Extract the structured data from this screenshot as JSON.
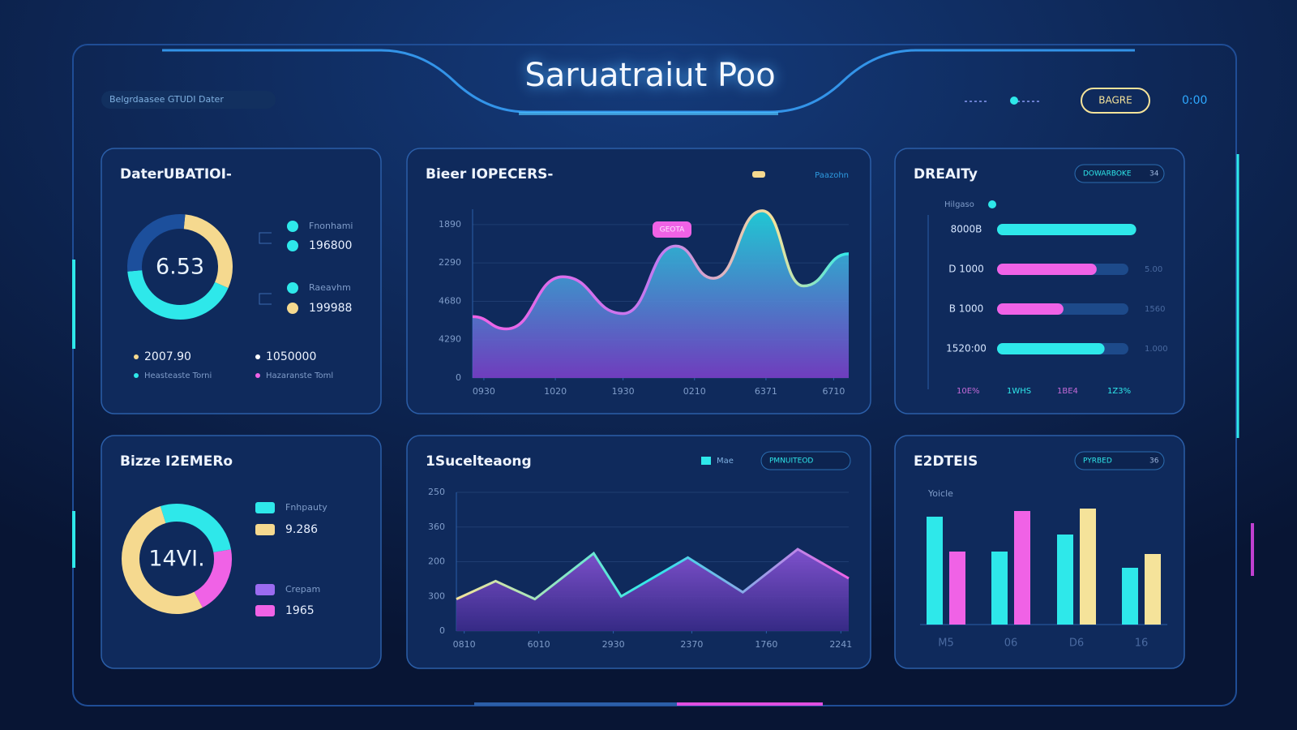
{
  "header": {
    "title": "Saruatraiut Poo",
    "subtitle": "Belgrdaasee GTUDI Dater",
    "button": "BAGRE",
    "time": "0:00"
  },
  "chart_data": [
    {
      "type": "donut",
      "title": "DaterUBATIOI-",
      "center": "6.53",
      "values": [
        30,
        42,
        28
      ],
      "colors": [
        "#f5d98f",
        "#2ee8ea",
        "#1c4f9c"
      ],
      "legend": [
        {
          "label": "Fnonhami",
          "color": "#2ee8ea"
        },
        {
          "label": "196800",
          "color": "#2ee8ea"
        },
        {
          "label": "Raeavhm",
          "color": "#2ee8ea"
        },
        {
          "label": "199988",
          "color": "#f5d98f"
        }
      ],
      "footer": [
        {
          "text": "2007.90",
          "note": "Heasteaste Torni",
          "color": "#2ee8ea"
        },
        {
          "text": "1050000",
          "note": "Hazaranste Toml",
          "color": "#f062e6"
        }
      ]
    },
    {
      "type": "area",
      "title": "Bieer IOPECERS-",
      "legend": "Paazohn",
      "annotation": "GEOTA",
      "x": [
        0,
        9,
        24,
        40,
        54,
        64,
        77,
        88,
        100
      ],
      "values": [
        40,
        32,
        66,
        42,
        86,
        65,
        109,
        60,
        81
      ],
      "xlim": [
        0,
        100
      ],
      "xticks": [
        {
          "value": 3,
          "label": "0930"
        },
        {
          "value": 22,
          "label": "1020"
        },
        {
          "value": 40,
          "label": "1930"
        },
        {
          "value": 59,
          "label": "0210"
        },
        {
          "value": 78,
          "label": "6371"
        },
        {
          "value": 96,
          "label": "6710"
        }
      ],
      "ylim": [
        0,
        110
      ],
      "yticks": [
        0,
        {
          "value": 25,
          "label": "4290"
        },
        {
          "value": 50,
          "label": "4680"
        },
        {
          "value": 75,
          "label": "2290"
        },
        {
          "value": 100,
          "label": "1890"
        }
      ]
    },
    {
      "type": "hbar",
      "title": "DREAITy",
      "subtitle": "Hilgaso",
      "badge": "DOWARBOKE",
      "badge_note": "34",
      "xlim": [
        0,
        100
      ],
      "rows": [
        {
          "label": "8000B",
          "value": 88,
          "color": "#2ee8ea"
        },
        {
          "label": "D 1000",
          "value": 63,
          "color": "#f062e6",
          "note": "5.00"
        },
        {
          "label": "B 1000",
          "value": 42,
          "color": "#f062e6",
          "note": "1560"
        },
        {
          "label": "1520:00",
          "value": 68,
          "color": "#2ee8ea",
          "note": "1.000"
        }
      ],
      "footer": [
        "10E%",
        "1WHS",
        "1BE4",
        "1Z3%"
      ]
    },
    {
      "type": "donut",
      "title": "Bizze I2EMERo",
      "center": "14VI.",
      "values": [
        27,
        20,
        53
      ],
      "colors": [
        "#2ee8ea",
        "#f062e6",
        "#f5d98f"
      ],
      "legend": [
        {
          "label": "Fnhpauty",
          "color": "#2ee8ea"
        },
        {
          "label": "9.286",
          "color": "#f5d98f"
        },
        {
          "label": "Crepam",
          "color": "#9b6bf0"
        },
        {
          "label": "1965",
          "color": "#f062e6"
        }
      ]
    },
    {
      "type": "line",
      "title": "1Sucelteaong",
      "legend": "Mae",
      "badge": "PMNUITEOD",
      "x": [
        0,
        10,
        20,
        35,
        42,
        59,
        73,
        87,
        100
      ],
      "values": [
        23,
        36,
        23,
        56,
        25,
        53,
        28,
        59,
        38
      ],
      "xlim": [
        0,
        100
      ],
      "xticks": [
        {
          "value": 2,
          "label": "0810"
        },
        {
          "value": 21,
          "label": "6010"
        },
        {
          "value": 40,
          "label": "2930"
        },
        {
          "value": 60,
          "label": "2370"
        },
        {
          "value": 79,
          "label": "1760"
        },
        {
          "value": 98,
          "label": "2241"
        }
      ],
      "ylim": [
        0,
        100
      ],
      "yticks": [
        0,
        {
          "value": 25,
          "label": "300"
        },
        {
          "value": 50,
          "label": "200"
        },
        {
          "value": 75,
          "label": "360"
        },
        {
          "value": 100,
          "label": "250"
        }
      ]
    },
    {
      "type": "bar",
      "title": "E2DTEIS",
      "badge": "PYRBED",
      "badge_note": "36",
      "axis_label": "Yoicle",
      "categories": [
        "M5",
        "06",
        "D6",
        "16"
      ],
      "ylim": [
        0,
        150
      ],
      "series": [
        {
          "color": "#2ee8ea",
          "values": [
            133,
            90,
            111,
            70
          ]
        },
        {
          "colors": [
            "#f062e6",
            "#f062e6",
            "#f5e39a",
            "#f5e39a"
          ],
          "values": [
            90,
            140,
            143,
            87
          ]
        }
      ]
    }
  ]
}
